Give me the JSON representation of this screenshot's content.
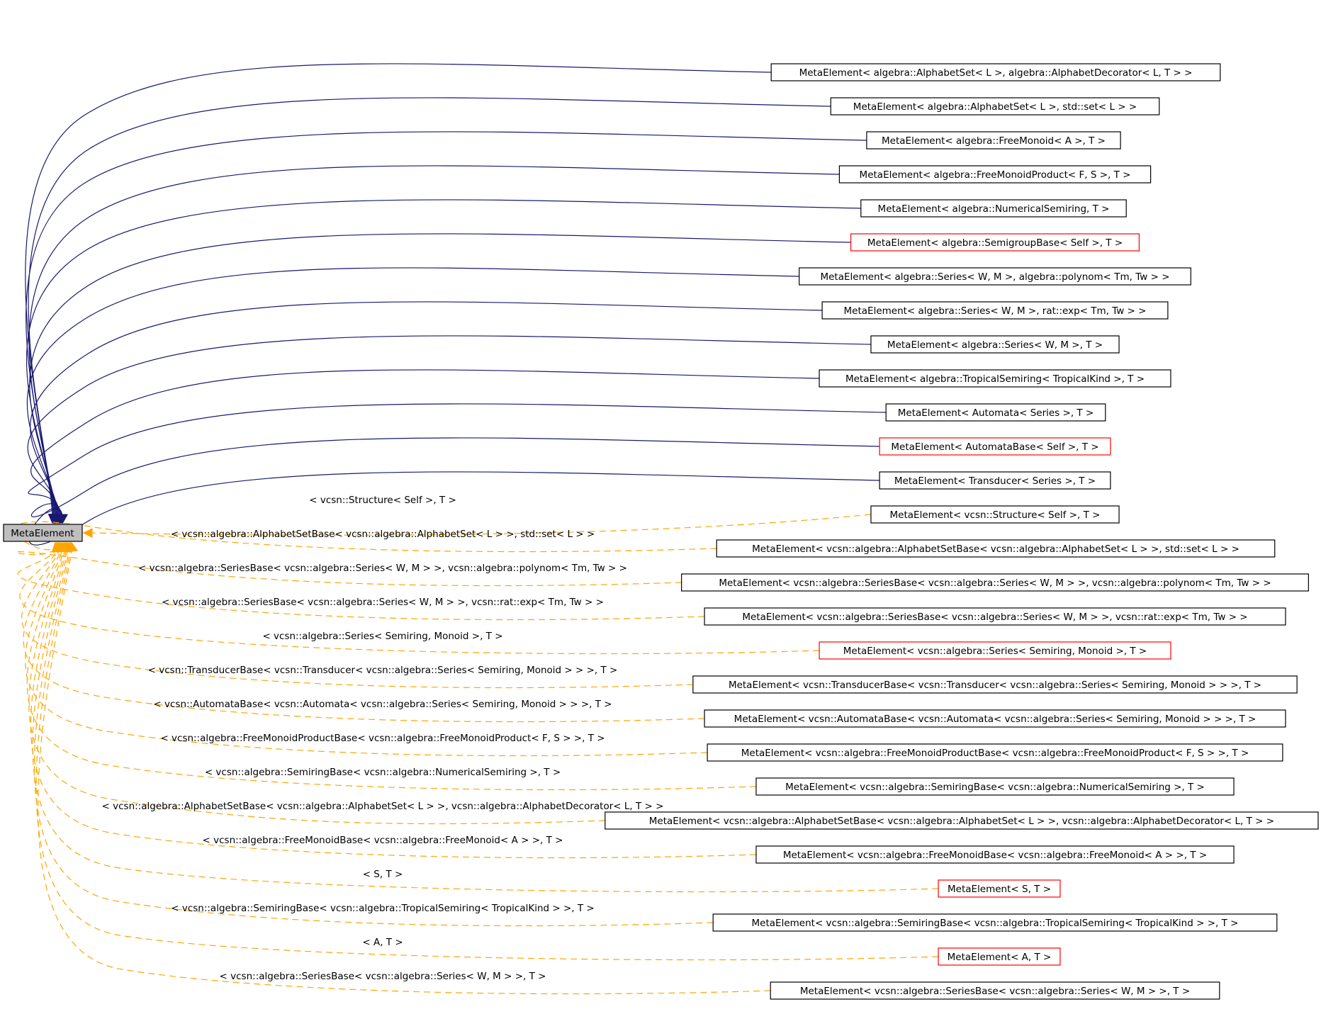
{
  "root": {
    "label": "MetaElement"
  },
  "colors": {
    "blue_edge": "#191970",
    "orange_edge": "#ffa500",
    "black_border": "#000000",
    "red_border": "#ff0000",
    "root_fill": "#bfbfbf"
  },
  "nodes": [
    {
      "label": "MetaElement< algebra::AlphabetSet< L >, algebra::AlphabetDecorator< L, T > >",
      "border": "black"
    },
    {
      "label": "MetaElement< algebra::AlphabetSet< L >, std::set< L > >",
      "border": "black"
    },
    {
      "label": "MetaElement< algebra::FreeMonoid< A >, T >",
      "border": "black"
    },
    {
      "label": "MetaElement< algebra::FreeMonoidProduct< F, S >, T >",
      "border": "black"
    },
    {
      "label": "MetaElement< algebra::NumericalSemiring, T >",
      "border": "black"
    },
    {
      "label": "MetaElement< algebra::SemigroupBase< Self >, T >",
      "border": "red"
    },
    {
      "label": "MetaElement< algebra::Series< W, M >, algebra::polynom< Tm, Tw > >",
      "border": "black"
    },
    {
      "label": "MetaElement< algebra::Series< W, M >, rat::exp< Tm, Tw > >",
      "border": "black"
    },
    {
      "label": "MetaElement< algebra::Series< W, M >, T >",
      "border": "black"
    },
    {
      "label": "MetaElement< algebra::TropicalSemiring< TropicalKind >, T >",
      "border": "black"
    },
    {
      "label": "MetaElement< Automata< Series >, T >",
      "border": "black"
    },
    {
      "label": "MetaElement< AutomataBase< Self >, T >",
      "border": "red"
    },
    {
      "label": "MetaElement< Transducer< Series >, T >",
      "border": "black"
    },
    {
      "label": "MetaElement< vcsn::Structure< Self >, T >",
      "border": "black",
      "edge_label": "< vcsn::Structure< Self >, T >"
    },
    {
      "label": "MetaElement< vcsn::algebra::AlphabetSetBase< vcsn::algebra::AlphabetSet< L > >, std::set< L > >",
      "border": "black",
      "edge_label": "< vcsn::algebra::AlphabetSetBase< vcsn::algebra::AlphabetSet< L > >, std::set< L > >"
    },
    {
      "label": "MetaElement< vcsn::algebra::SeriesBase< vcsn::algebra::Series< W, M > >, vcsn::algebra::polynom< Tm, Tw > >",
      "border": "black",
      "edge_label": "< vcsn::algebra::SeriesBase< vcsn::algebra::Series< W, M > >, vcsn::algebra::polynom< Tm, Tw > >"
    },
    {
      "label": "MetaElement< vcsn::algebra::SeriesBase< vcsn::algebra::Series< W, M > >, vcsn::rat::exp< Tm, Tw > >",
      "border": "black",
      "edge_label": "< vcsn::algebra::SeriesBase< vcsn::algebra::Series< W, M > >, vcsn::rat::exp< Tm, Tw > >"
    },
    {
      "label": "MetaElement< vcsn::algebra::Series< Semiring, Monoid >, T >",
      "border": "red",
      "edge_label": "< vcsn::algebra::Series< Semiring, Monoid >, T >"
    },
    {
      "label": "MetaElement< vcsn::TransducerBase< vcsn::Transducer< vcsn::algebra::Series< Semiring, Monoid > > >, T >",
      "border": "black",
      "edge_label": "< vcsn::TransducerBase< vcsn::Transducer< vcsn::algebra::Series< Semiring, Monoid > > >, T >"
    },
    {
      "label": "MetaElement< vcsn::AutomataBase< vcsn::Automata< vcsn::algebra::Series< Semiring, Monoid > > >, T >",
      "border": "black",
      "edge_label": "< vcsn::AutomataBase< vcsn::Automata< vcsn::algebra::Series< Semiring, Monoid > > >, T >"
    },
    {
      "label": "MetaElement< vcsn::algebra::FreeMonoidProductBase< vcsn::algebra::FreeMonoidProduct< F, S > >, T >",
      "border": "black",
      "edge_label": "< vcsn::algebra::FreeMonoidProductBase< vcsn::algebra::FreeMonoidProduct< F, S > >, T >"
    },
    {
      "label": "MetaElement< vcsn::algebra::SemiringBase< vcsn::algebra::NumericalSemiring >, T >",
      "border": "black",
      "edge_label": "< vcsn::algebra::SemiringBase< vcsn::algebra::NumericalSemiring >, T >"
    },
    {
      "label": "MetaElement< vcsn::algebra::AlphabetSetBase< vcsn::algebra::AlphabetSet< L > >, vcsn::algebra::AlphabetDecorator< L, T > >",
      "border": "black",
      "edge_label": "< vcsn::algebra::AlphabetSetBase< vcsn::algebra::AlphabetSet< L > >, vcsn::algebra::AlphabetDecorator< L, T > >"
    },
    {
      "label": "MetaElement< vcsn::algebra::FreeMonoidBase< vcsn::algebra::FreeMonoid< A > >, T >",
      "border": "black",
      "edge_label": "< vcsn::algebra::FreeMonoidBase< vcsn::algebra::FreeMonoid< A > >, T >"
    },
    {
      "label": "MetaElement< S, T >",
      "border": "red",
      "edge_label": "< S, T >"
    },
    {
      "label": "MetaElement< vcsn::algebra::SemiringBase< vcsn::algebra::TropicalSemiring< TropicalKind > >, T >",
      "border": "black",
      "edge_label": "< vcsn::algebra::SemiringBase< vcsn::algebra::TropicalSemiring< TropicalKind > >, T >"
    },
    {
      "label": "MetaElement< A, T >",
      "border": "red",
      "edge_label": "< A, T >"
    },
    {
      "label": "MetaElement< vcsn::algebra::SeriesBase< vcsn::algebra::Series< W, M > >, T >",
      "border": "black",
      "edge_label": "< vcsn::algebra::SeriesBase< vcsn::algebra::Series< W, M > >, T >"
    }
  ]
}
